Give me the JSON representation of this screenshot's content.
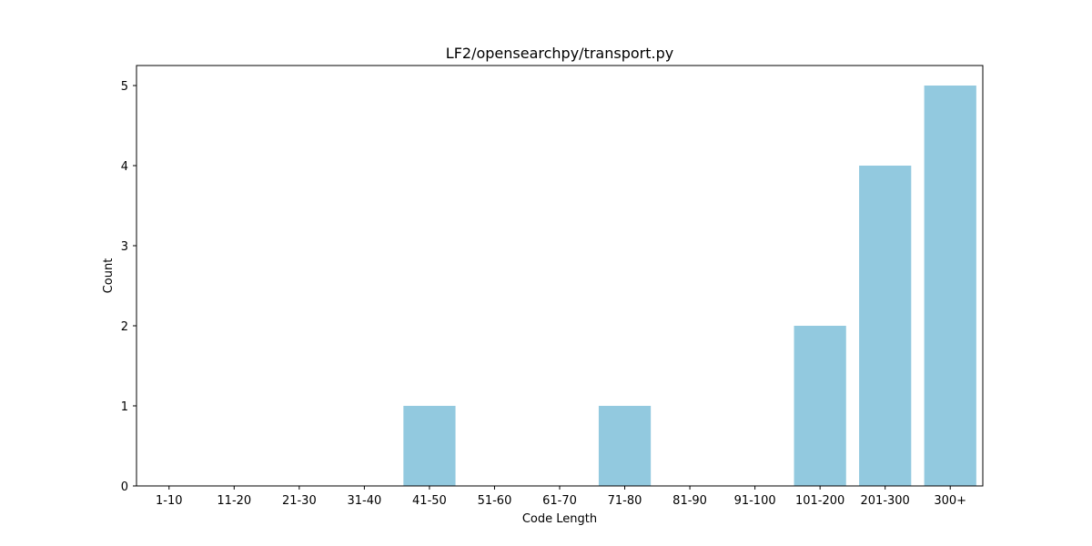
{
  "chart_data": {
    "type": "bar",
    "title": "LF2/opensearchpy/transport.py",
    "xlabel": "Code Length",
    "ylabel": "Count",
    "categories": [
      "1-10",
      "11-20",
      "21-30",
      "31-40",
      "41-50",
      "51-60",
      "61-70",
      "71-80",
      "81-90",
      "91-100",
      "101-200",
      "201-300",
      "300+"
    ],
    "values": [
      0,
      0,
      0,
      0,
      1,
      0,
      0,
      1,
      0,
      0,
      2,
      4,
      5
    ],
    "ylim": [
      0,
      5.25
    ],
    "yticks": [
      0,
      1,
      2,
      3,
      4,
      5
    ],
    "bar_color": "#92c9df",
    "grid": false,
    "legend": false
  }
}
